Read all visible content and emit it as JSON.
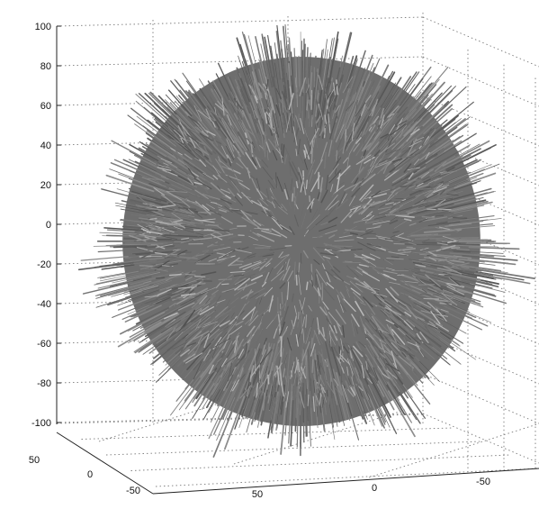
{
  "chart_data": {
    "type": "scatter",
    "title": "",
    "xlabel": "",
    "ylabel": "",
    "zlabel": "",
    "surface_color": "#7a7a7a",
    "grid": true,
    "z_ticks": [
      "100",
      "80",
      "60",
      "40",
      "20",
      "0",
      "-20",
      "-40",
      "-60",
      "-80",
      "-100"
    ],
    "x_ticks": [
      "50",
      "0",
      "-50"
    ],
    "y_ticks": [
      "50",
      "0",
      "-50"
    ],
    "zlim": [
      -100,
      100
    ],
    "xlim": [
      -50,
      50
    ],
    "ylim": [
      -50,
      50
    ]
  }
}
